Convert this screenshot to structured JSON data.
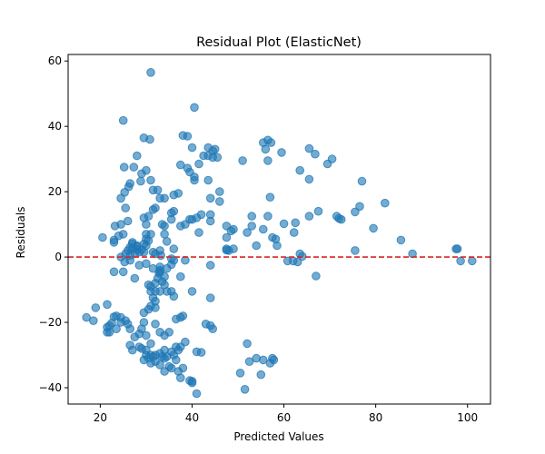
{
  "chart_data": {
    "type": "scatter",
    "title": "Residual Plot (ElasticNet)",
    "xlabel": "Predicted Values",
    "ylabel": "Residuals",
    "xlim": [
      13,
      105
    ],
    "ylim": [
      -45,
      62
    ],
    "xticks": [
      20,
      40,
      60,
      80,
      100
    ],
    "yticks": [
      -40,
      -20,
      0,
      20,
      40,
      60
    ],
    "grid": false,
    "colors": {
      "points": "#1f77b4",
      "reference_line": "#d62728"
    },
    "reference_line": {
      "y": 0,
      "style": "dashed"
    },
    "points": [
      [
        31,
        56.5
      ],
      [
        40.5,
        45.8
      ],
      [
        25,
        41.8
      ],
      [
        29.5,
        36.5
      ],
      [
        30.8,
        36
      ],
      [
        38,
        37.2
      ],
      [
        39,
        37
      ],
      [
        40,
        33.5
      ],
      [
        43.5,
        33.5
      ],
      [
        44.5,
        32.5
      ],
      [
        45,
        33
      ],
      [
        42.5,
        31
      ],
      [
        43.5,
        31
      ],
      [
        44.5,
        30.5
      ],
      [
        45.5,
        30.5
      ],
      [
        41.5,
        28.5
      ],
      [
        37.5,
        28.2
      ],
      [
        39,
        27.2
      ],
      [
        39.5,
        26
      ],
      [
        40.5,
        24.5
      ],
      [
        40.5,
        23.5
      ],
      [
        43.5,
        23.5
      ],
      [
        28,
        31
      ],
      [
        30,
        26.5
      ],
      [
        29,
        25.5
      ],
      [
        26.5,
        22.5
      ],
      [
        27.3,
        27.5
      ],
      [
        25.2,
        27.5
      ],
      [
        28.8,
        23.2
      ],
      [
        31,
        23.5
      ],
      [
        26.2,
        21.5
      ],
      [
        25.3,
        19.8
      ],
      [
        31.5,
        20.5
      ],
      [
        32.5,
        20.5
      ],
      [
        24.5,
        18
      ],
      [
        33,
        18
      ],
      [
        34,
        18
      ],
      [
        36,
        19
      ],
      [
        37,
        19.5
      ],
      [
        44,
        18
      ],
      [
        46,
        20
      ],
      [
        46,
        17
      ],
      [
        51,
        29.5
      ],
      [
        55.5,
        35
      ],
      [
        56.5,
        35.8
      ],
      [
        57.2,
        35
      ],
      [
        56,
        33
      ],
      [
        56.5,
        29.5
      ],
      [
        59.5,
        32
      ],
      [
        63.5,
        26.5
      ],
      [
        65.5,
        33.2
      ],
      [
        66.8,
        31.5
      ],
      [
        65.5,
        23.8
      ],
      [
        69.5,
        28.5
      ],
      [
        70.5,
        30
      ],
      [
        77,
        23.2
      ],
      [
        57,
        18.3
      ],
      [
        82,
        16.5
      ],
      [
        76.5,
        15.5
      ],
      [
        75.5,
        13.8
      ],
      [
        71.5,
        12.5
      ],
      [
        72,
        11.8
      ],
      [
        72.5,
        11.5
      ],
      [
        79.5,
        8.8
      ],
      [
        85.5,
        5.2
      ],
      [
        88,
        1
      ],
      [
        97.5,
        2.5
      ],
      [
        97.8,
        2.5
      ],
      [
        98.5,
        -1.2
      ],
      [
        101,
        -1.2
      ],
      [
        75.5,
        2
      ],
      [
        67.5,
        14
      ],
      [
        65.5,
        12.5
      ],
      [
        62.5,
        10.5
      ],
      [
        60,
        10.2
      ],
      [
        57.5,
        6
      ],
      [
        58.2,
        5.5
      ],
      [
        58.5,
        3.5
      ],
      [
        60.8,
        -1.2
      ],
      [
        62,
        -1.2
      ],
      [
        63,
        -1.5
      ],
      [
        63.5,
        1
      ],
      [
        64,
        0.2
      ],
      [
        67,
        -5.8
      ],
      [
        62.2,
        7.5
      ],
      [
        53,
        12.5
      ],
      [
        53,
        9.5
      ],
      [
        56.5,
        12.5
      ],
      [
        55.5,
        8.5
      ],
      [
        54,
        3.5
      ],
      [
        52,
        7.5
      ],
      [
        49,
        8.5
      ],
      [
        47.5,
        9.5
      ],
      [
        48.5,
        8
      ],
      [
        47.5,
        6
      ],
      [
        47.5,
        2.5
      ],
      [
        48,
        2
      ],
      [
        49,
        2.5
      ],
      [
        47.5,
        2.1
      ],
      [
        44,
        13
      ],
      [
        42,
        13
      ],
      [
        41,
        12
      ],
      [
        44,
        11
      ],
      [
        39.5,
        11.5
      ],
      [
        40,
        11.5
      ],
      [
        38.5,
        10
      ],
      [
        41.5,
        7.5
      ],
      [
        37.5,
        9.5
      ],
      [
        35.5,
        11.5
      ],
      [
        36,
        14
      ],
      [
        35.5,
        13.5
      ],
      [
        34,
        9.5
      ],
      [
        33.5,
        10
      ],
      [
        34,
        7
      ],
      [
        33,
        2
      ],
      [
        34.5,
        4.8
      ],
      [
        33.2,
        0.5
      ],
      [
        35.5,
        -0.5
      ],
      [
        36,
        2.5
      ],
      [
        35.5,
        -2.3
      ],
      [
        34.5,
        -3.5
      ],
      [
        36,
        -1
      ],
      [
        33,
        -4.5
      ],
      [
        34,
        -6
      ],
      [
        37.5,
        -6
      ],
      [
        38.5,
        -1
      ],
      [
        44,
        -2.5
      ],
      [
        40,
        -10.5
      ],
      [
        44,
        -12.5
      ],
      [
        31.5,
        14.5
      ],
      [
        32,
        15
      ],
      [
        30.5,
        12.5
      ],
      [
        29.5,
        12
      ],
      [
        30,
        10
      ],
      [
        30,
        7
      ],
      [
        31,
        7
      ],
      [
        30,
        5.5
      ],
      [
        30.5,
        5
      ],
      [
        29.5,
        4
      ],
      [
        30,
        3.5
      ],
      [
        29,
        2.2
      ],
      [
        29.5,
        1.5
      ],
      [
        31.5,
        1.5
      ],
      [
        32,
        1
      ],
      [
        28,
        3.2
      ],
      [
        28.5,
        1.5
      ],
      [
        28,
        2.3
      ],
      [
        27.5,
        1
      ],
      [
        27,
        2.5
      ],
      [
        26.5,
        3
      ],
      [
        26,
        2
      ],
      [
        25.5,
        1
      ],
      [
        26.5,
        0.5
      ],
      [
        24.5,
        0
      ],
      [
        24,
        6.5
      ],
      [
        25,
        7
      ],
      [
        24.5,
        10
      ],
      [
        23.2,
        9.5
      ],
      [
        26,
        11
      ],
      [
        25.5,
        15
      ],
      [
        20.5,
        6
      ],
      [
        23,
        5.2
      ],
      [
        23,
        4.5
      ],
      [
        27,
        4.5
      ],
      [
        27,
        4
      ],
      [
        28,
        3.5
      ],
      [
        26.5,
        -1
      ],
      [
        25.3,
        -1.5
      ],
      [
        28.5,
        -2.5
      ],
      [
        30,
        -2
      ],
      [
        31.5,
        -3.5
      ],
      [
        23,
        -4.5
      ],
      [
        25,
        -4.5
      ],
      [
        27.5,
        -6.5
      ],
      [
        30.5,
        -8.5
      ],
      [
        31,
        -9
      ],
      [
        32,
        -8
      ],
      [
        31,
        -10.5
      ],
      [
        32,
        -10.5
      ],
      [
        33,
        -10.5
      ],
      [
        34.5,
        -10.5
      ],
      [
        35.5,
        -10.5
      ],
      [
        36,
        -12
      ],
      [
        32.5,
        -6.5
      ],
      [
        32.8,
        -5
      ],
      [
        33,
        -4
      ],
      [
        33,
        -3
      ],
      [
        33.5,
        -7.5
      ],
      [
        34,
        -8.5
      ],
      [
        31.5,
        -12.5
      ],
      [
        32,
        -13.5
      ],
      [
        31,
        -15
      ],
      [
        32,
        -15.5
      ],
      [
        30.5,
        -16
      ],
      [
        29.5,
        -17
      ],
      [
        29.5,
        -20
      ],
      [
        29,
        -22
      ],
      [
        28.5,
        -23.5
      ],
      [
        32,
        -20.5
      ],
      [
        30,
        -24
      ],
      [
        31,
        -26.5
      ],
      [
        30,
        -28.5
      ],
      [
        30,
        -30
      ],
      [
        31,
        -30
      ],
      [
        31.5,
        -30.5
      ],
      [
        32,
        -30
      ],
      [
        33,
        -29.5
      ],
      [
        33.5,
        -30.5
      ],
      [
        34,
        -31
      ],
      [
        34.5,
        -30.5
      ],
      [
        34,
        -28.5
      ],
      [
        35.5,
        -29
      ],
      [
        36.5,
        -27.5
      ],
      [
        37.5,
        -27.5
      ],
      [
        36.5,
        -31.5
      ],
      [
        37,
        -35
      ],
      [
        37.5,
        -37
      ],
      [
        38,
        -34
      ],
      [
        38.5,
        -26
      ],
      [
        39.5,
        -37.8
      ],
      [
        40,
        -38.5
      ],
      [
        40,
        -38
      ],
      [
        41,
        -29
      ],
      [
        42,
        -29.2
      ],
      [
        41,
        -41.8
      ],
      [
        35,
        -33.5
      ],
      [
        34,
        -35
      ],
      [
        33,
        -33
      ],
      [
        32,
        -32
      ],
      [
        31,
        -32.5
      ],
      [
        30.5,
        -31
      ],
      [
        29.5,
        -31.5
      ],
      [
        29,
        -28
      ],
      [
        28.5,
        -27.5
      ],
      [
        27,
        -28.5
      ],
      [
        26.5,
        -27
      ],
      [
        27.5,
        -24.5
      ],
      [
        26.5,
        -22
      ],
      [
        26,
        -20.5
      ],
      [
        25.5,
        -19.5
      ],
      [
        24.5,
        -18.5
      ],
      [
        24.5,
        -20
      ],
      [
        23.5,
        -18
      ],
      [
        23,
        -18.3
      ],
      [
        22.5,
        -20.2
      ],
      [
        22,
        -21
      ],
      [
        21.5,
        -21.5
      ],
      [
        23.5,
        -22
      ],
      [
        22,
        -23
      ],
      [
        21.5,
        -14.5
      ],
      [
        19,
        -15.5
      ],
      [
        18.5,
        -19.5
      ],
      [
        17,
        -18.5
      ],
      [
        21.5,
        -23
      ],
      [
        33,
        -23
      ],
      [
        34,
        -24
      ],
      [
        35,
        -23
      ],
      [
        36,
        -30
      ],
      [
        36.5,
        -19
      ],
      [
        37.5,
        -18.5
      ],
      [
        38,
        -18
      ],
      [
        37,
        -28.5
      ],
      [
        35.5,
        -34
      ],
      [
        43,
        -20.5
      ],
      [
        44,
        -21
      ],
      [
        50.5,
        -35.5
      ],
      [
        51.5,
        -40.5
      ],
      [
        52,
        -26.5
      ],
      [
        52.5,
        -32
      ],
      [
        54,
        -31
      ],
      [
        55,
        -36
      ],
      [
        55.5,
        -31.5
      ],
      [
        57.5,
        -31
      ],
      [
        57.8,
        -31.5
      ],
      [
        57,
        -32.5
      ],
      [
        44.5,
        -22
      ]
    ]
  }
}
